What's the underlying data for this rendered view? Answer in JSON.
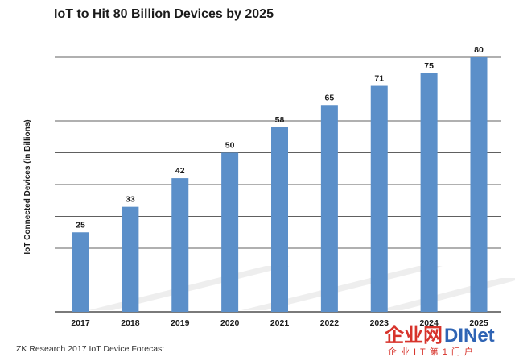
{
  "chart_data": {
    "type": "bar",
    "title": "IoT to Hit 80 Billion Devices by 2025",
    "xlabel": "",
    "ylabel": "IoT Connected Devices (in Billions)",
    "categories": [
      "2017",
      "2018",
      "2019",
      "2020",
      "2021",
      "2022",
      "2023",
      "2024",
      "2025"
    ],
    "values": [
      25,
      33,
      42,
      50,
      58,
      65,
      71,
      75,
      80
    ],
    "ylim": [
      0,
      80
    ],
    "gridlines": [
      0,
      10,
      20,
      30,
      40,
      50,
      60,
      70,
      80
    ],
    "grid": true,
    "legend": "none",
    "bar_color": "#5b8fc9",
    "source": "ZK Research 2017 IoT Device Forecast"
  },
  "watermark": {
    "text_cn": "企业网",
    "text_en": "DINet",
    "tagline": "企业IT第1门户",
    "color_red": "#d7332b",
    "color_blue": "#2f64b4"
  }
}
